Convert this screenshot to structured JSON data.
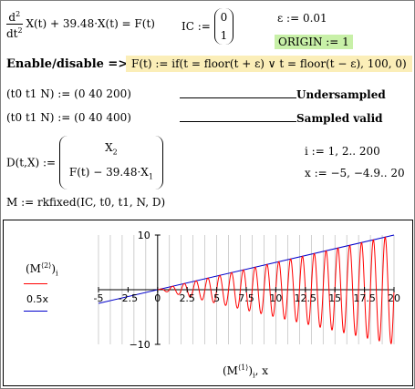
{
  "eq1": {
    "d2": "d",
    "sup2": "2",
    "dt2": "dt",
    "rest": "X(t) + 39.48·X(t) = F(t)"
  },
  "ic": {
    "label": "IC :=",
    "v0": "0",
    "v1": "1"
  },
  "eps": {
    "text": "ε := 0.01"
  },
  "origin": {
    "text": "ORIGIN := 1"
  },
  "enable": {
    "label": "Enable/disable =>",
    "formula": "F(t) := if(t = floor(t + ε) ∨ t = floor(t − ε), 100, 0)"
  },
  "rows": [
    {
      "text": "(t0  t1  N) := (0  40  200)",
      "note": "Undersampled"
    },
    {
      "text": "(t0  t1  N) := (0  40  400)",
      "note": "Sampled valid"
    }
  ],
  "dfun": {
    "lhs": "D(t,X) :=",
    "top": "X",
    "top_sub": "2",
    "bottom": "F(t) − 39.48·X",
    "bottom_sub": "1"
  },
  "ranges": {
    "i": "i := 1, 2.. 200",
    "x": "x := −5, −4.9.. 20"
  },
  "rk": {
    "text": "M := rkfixed(IC, t0, t1, N, D)"
  },
  "plot": {
    "legend_m": "(M",
    "legend_m_sup": "⟨2⟩",
    "legend_m_close": ")",
    "legend_m_sub": "i",
    "legend_line": "0.5x",
    "xlabel": "(M",
    "xlabel_sup": "⟨1⟩",
    "xlabel_close": ")",
    "xlabel_sub": "i",
    "xlabel_tail": ", x",
    "ytick_top": "10",
    "ytick_bot": "−10",
    "colors": {
      "series": "#ff0000",
      "line": "#0000cc",
      "grid": "#b0b0b0"
    }
  },
  "chart_data": {
    "type": "line",
    "x_range": [
      -5,
      20
    ],
    "y_range": [
      -10,
      10
    ],
    "x_ticks": [
      "-5",
      "-2.5",
      "0",
      "2.5",
      "5",
      "7.5",
      "10",
      "12.5",
      "15",
      "17.5",
      "20"
    ],
    "y_ticks": [
      "10",
      "-10"
    ],
    "grid": "vertical",
    "series": [
      {
        "name": "(M⟨2⟩)i",
        "color": "#ff0000",
        "kind": "oscillation",
        "amplitude_per_x": 0.5,
        "frequency_rad": 6.283
      },
      {
        "name": "0.5x",
        "color": "#0000cc",
        "slope": 0.5
      }
    ]
  }
}
